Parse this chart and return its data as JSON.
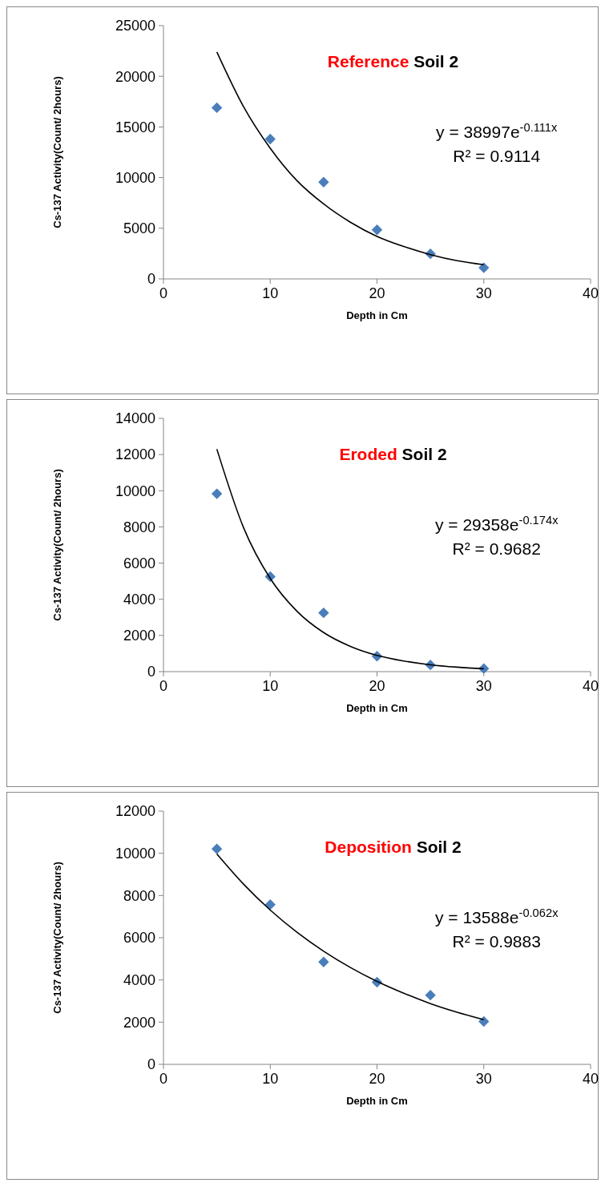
{
  "chart_data": [
    {
      "type": "scatter",
      "title": "Reference Soil 2",
      "xlabel": "Depth in Cm",
      "ylabel": "Cs-137 Activity(Count/ 2hours)",
      "xlim": [
        0,
        40
      ],
      "xticks": [
        0,
        10,
        20,
        30,
        40
      ],
      "ylim": [
        0,
        25000
      ],
      "yticks": [
        0,
        5000,
        10000,
        15000,
        20000,
        25000
      ],
      "grid": false,
      "annotations": [
        "y = 38997e$^{-0.111x}$",
        "R² = 0.9114"
      ],
      "series": [
        {
          "color": "#4a7ebb",
          "marker": "diamond",
          "x": [
            5,
            10,
            15,
            20,
            25,
            30
          ],
          "values": [
            16900,
            13800,
            9550,
            4840,
            2480,
            1100
          ]
        },
        {
          "type": "line",
          "marker": "none",
          "color": "#000000",
          "x": [
            5,
            7.5,
            10,
            12.5,
            15,
            17.5,
            20,
            22.5,
            25,
            27.5,
            30
          ],
          "values": [
            22400,
            17000,
            12900,
            9700,
            7400,
            5600,
            4200,
            3200,
            2400,
            1800,
            1400
          ]
        }
      ]
    },
    {
      "type": "scatter",
      "title": "Eroded Soil 2",
      "xlabel": "Depth in Cm",
      "ylabel": "Cs-137 Activity(Count/ 2hours)",
      "xlim": [
        0,
        40
      ],
      "xticks": [
        0,
        10,
        20,
        30,
        40
      ],
      "ylim": [
        0,
        14000
      ],
      "yticks": [
        0,
        2000,
        4000,
        6000,
        8000,
        10000,
        12000,
        14000
      ],
      "grid": false,
      "annotations": [
        "y = 29358e$^{-0.174x}$",
        "R² = 0.9682"
      ],
      "series": [
        {
          "color": "#4a7ebb",
          "marker": "diamond",
          "x": [
            5,
            10,
            15,
            20,
            25,
            30
          ],
          "values": [
            9830,
            5250,
            3250,
            850,
            370,
            170
          ]
        },
        {
          "type": "line",
          "marker": "none",
          "color": "#000000",
          "x": [
            5,
            7.5,
            10,
            12.5,
            15,
            17.5,
            20,
            22.5,
            25,
            27.5,
            30
          ],
          "values": [
            12300,
            7960,
            5150,
            3340,
            2160,
            1400,
            900,
            590,
            380,
            250,
            160
          ]
        }
      ]
    },
    {
      "type": "scatter",
      "title": "Deposition Soil 2",
      "xlabel": "Depth in Cm",
      "ylabel": "Cs-137 Activity(Count/ 2hours)",
      "xlim": [
        0,
        40
      ],
      "xticks": [
        0,
        10,
        20,
        30,
        40
      ],
      "ylim": [
        0,
        12000
      ],
      "yticks": [
        0,
        2000,
        4000,
        6000,
        8000,
        10000,
        12000
      ],
      "grid": false,
      "annotations": [
        "y = 13588e$^{-0.062x}$",
        "R² = 0.9883"
      ],
      "series": [
        {
          "color": "#4a7ebb",
          "marker": "diamond",
          "x": [
            5,
            10,
            15,
            20,
            25,
            30
          ],
          "values": [
            10210,
            7570,
            4850,
            3890,
            3280,
            2030
          ]
        },
        {
          "type": "line",
          "marker": "none",
          "color": "#000000",
          "x": [
            5,
            7.5,
            10,
            12.5,
            15,
            17.5,
            20,
            22.5,
            25,
            27.5,
            30
          ],
          "values": [
            9970,
            8540,
            7310,
            6260,
            5360,
            4590,
            3930,
            3370,
            2880,
            2470,
            2120
          ]
        }
      ]
    }
  ]
}
